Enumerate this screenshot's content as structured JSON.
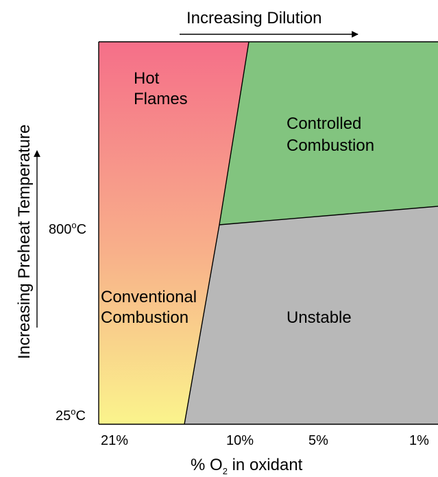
{
  "top_arrow": {
    "label": "Increasing Dilution"
  },
  "left_arrow": {
    "label": "Increasing Preheat Temperature"
  },
  "y_axis": {
    "ticks": [
      {
        "value": "800",
        "degree": "o",
        "unit": "C"
      },
      {
        "value": "25",
        "degree": "o",
        "unit": "C"
      }
    ]
  },
  "x_axis": {
    "ticks": [
      "21%",
      "10%",
      "5%",
      "1%"
    ],
    "label_prefix": "% O",
    "label_subscript": "2",
    "label_suffix": " in oxidant"
  },
  "regions": {
    "hot_flames": {
      "line1": "Hot",
      "line2": "Flames",
      "color_top": "#f56f89"
    },
    "controlled_combustion": {
      "line1": "Controlled",
      "line2": "Combustion",
      "color": "#82c47f"
    },
    "conventional_combustion": {
      "line1": "Conventional",
      "line2": "Combustion",
      "color_bottom": "#faf48c"
    },
    "unstable": {
      "label": "Unstable",
      "color": "#b8b8b8"
    }
  }
}
